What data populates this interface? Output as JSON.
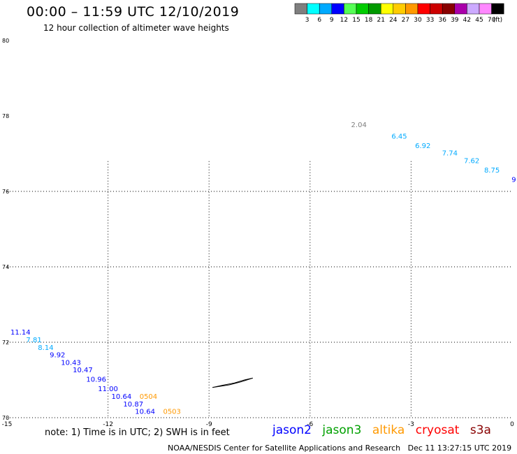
{
  "header": {
    "title": "00:00 – 11:59 UTC 12/10/2019",
    "subtitle": "12 hour collection of altimeter wave heights"
  },
  "colorbar": {
    "unit": "(ft)",
    "bins": [
      {
        "label": "3",
        "color": "#7f7f7f"
      },
      {
        "label": "6",
        "color": "#00ffff"
      },
      {
        "label": "9",
        "color": "#00aaff"
      },
      {
        "label": "12",
        "color": "#0000ff"
      },
      {
        "label": "15",
        "color": "#55ff55"
      },
      {
        "label": "18",
        "color": "#00cc00"
      },
      {
        "label": "21",
        "color": "#009900"
      },
      {
        "label": "24",
        "color": "#ffff00"
      },
      {
        "label": "27",
        "color": "#ffcc00"
      },
      {
        "label": "30",
        "color": "#ff9900"
      },
      {
        "label": "33",
        "color": "#ff0000"
      },
      {
        "label": "36",
        "color": "#cc0000"
      },
      {
        "label": "39",
        "color": "#880000"
      },
      {
        "label": "42",
        "color": "#aa00aa"
      },
      {
        "label": "45",
        "color": "#ccaaff"
      },
      {
        "label": "70",
        "color": "#ff88ff"
      },
      {
        "label": "",
        "color": "#000000"
      }
    ]
  },
  "footer": {
    "note": "note: 1) Time is in UTC; 2) SWH is in feet",
    "credit": "NOAA/NESDIS Center for Satellite Applications and Research   Dec 11 13:27:15 UTC 2019"
  },
  "satellites": [
    {
      "name": "jason2",
      "color": "#0000ff"
    },
    {
      "name": "jason3",
      "color": "#00a000"
    },
    {
      "name": "altika",
      "color": "#ff9900"
    },
    {
      "name": "cryosat",
      "color": "#ff0000"
    },
    {
      "name": "s3a",
      "color": "#880000"
    }
  ],
  "chart_data": {
    "type": "scatter",
    "xlim": [
      -15,
      0
    ],
    "ylim": [
      70,
      80
    ],
    "x_ticks": [
      {
        "value": -15,
        "label": "-15"
      },
      {
        "value": -12,
        "label": "-12"
      },
      {
        "value": -9,
        "label": "-9"
      },
      {
        "value": -6,
        "label": "-6"
      },
      {
        "value": -3,
        "label": "-3"
      },
      {
        "value": 0,
        "label": "0"
      }
    ],
    "y_ticks": [
      {
        "value": 70,
        "label": "70"
      },
      {
        "value": 72,
        "label": "72"
      },
      {
        "value": 74,
        "label": "74"
      },
      {
        "value": 76,
        "label": "76"
      },
      {
        "value": 78,
        "label": "78"
      },
      {
        "value": 80,
        "label": "80"
      }
    ],
    "grid": true,
    "points": [
      {
        "x": -4.55,
        "y": 77.7,
        "label": "2.04",
        "color": "#7f7f7f"
      },
      {
        "x": -3.35,
        "y": 77.4,
        "label": "6.45",
        "color": "#00aaff"
      },
      {
        "x": -2.65,
        "y": 77.15,
        "label": "6.92",
        "color": "#00aaff"
      },
      {
        "x": -1.85,
        "y": 76.95,
        "label": "7.74",
        "color": "#00aaff"
      },
      {
        "x": -1.2,
        "y": 76.75,
        "label": "7.62",
        "color": "#00aaff"
      },
      {
        "x": -0.6,
        "y": 76.5,
        "label": "8.75",
        "color": "#00aaff"
      },
      {
        "x": 0.05,
        "y": 76.25,
        "label": "9",
        "color": "#0000ff"
      },
      {
        "x": -14.6,
        "y": 72.2,
        "label": "11.14",
        "color": "#0000ff"
      },
      {
        "x": -14.2,
        "y": 72.0,
        "label": "7.81",
        "color": "#00aaff"
      },
      {
        "x": -13.85,
        "y": 71.8,
        "label": "8.14",
        "color": "#00aaff"
      },
      {
        "x": -13.5,
        "y": 71.6,
        "label": "9.92",
        "color": "#0000ff"
      },
      {
        "x": -13.1,
        "y": 71.4,
        "label": "10.43",
        "color": "#0000ff"
      },
      {
        "x": -12.75,
        "y": 71.2,
        "label": "10.47",
        "color": "#0000ff"
      },
      {
        "x": -12.35,
        "y": 70.95,
        "label": "10.96",
        "color": "#0000ff"
      },
      {
        "x": -12.0,
        "y": 70.7,
        "label": "11.00",
        "color": "#0000ff"
      },
      {
        "x": -11.6,
        "y": 70.5,
        "label": "10.64",
        "color": "#0000ff"
      },
      {
        "x": -11.25,
        "y": 70.3,
        "label": "10.87",
        "color": "#0000ff"
      },
      {
        "x": -10.9,
        "y": 70.1,
        "label": "10.64",
        "color": "#0000ff"
      },
      {
        "x": -10.8,
        "y": 70.5,
        "label": "0504",
        "color": "#ff9900"
      },
      {
        "x": -10.1,
        "y": 70.1,
        "label": "0503",
        "color": "#ff9900"
      }
    ],
    "coastline": [
      [
        -8.9,
        70.8
      ],
      [
        -8.4,
        70.87
      ],
      [
        -8.05,
        70.95
      ],
      [
        -7.7,
        71.05
      ],
      [
        -7.95,
        71.0
      ],
      [
        -8.25,
        70.92
      ],
      [
        -8.6,
        70.86
      ],
      [
        -8.9,
        70.8
      ]
    ]
  }
}
